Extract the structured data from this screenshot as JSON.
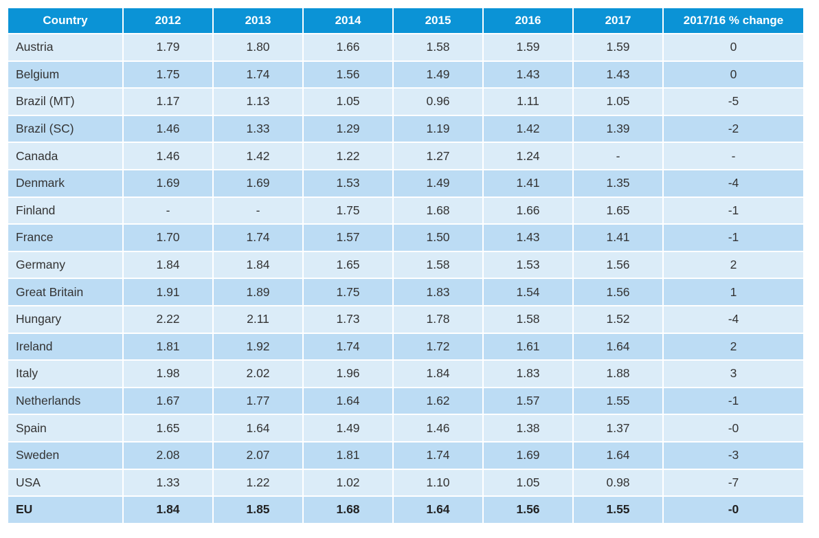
{
  "chart_data": {
    "type": "table",
    "columns": [
      "Country",
      "2012",
      "2013",
      "2014",
      "2015",
      "2016",
      "2017",
      "2017/16 % change"
    ],
    "rows": [
      {
        "country": "Austria",
        "values": [
          "1.79",
          "1.80",
          "1.66",
          "1.58",
          "1.59",
          "1.59",
          "0"
        ]
      },
      {
        "country": "Belgium",
        "values": [
          "1.75",
          "1.74",
          "1.56",
          "1.49",
          "1.43",
          "1.43",
          "0"
        ]
      },
      {
        "country": "Brazil (MT)",
        "values": [
          "1.17",
          "1.13",
          "1.05",
          "0.96",
          "1.11",
          "1.05",
          "-5"
        ]
      },
      {
        "country": "Brazil (SC)",
        "values": [
          "1.46",
          "1.33",
          "1.29",
          "1.19",
          "1.42",
          "1.39",
          "-2"
        ]
      },
      {
        "country": "Canada",
        "values": [
          "1.46",
          "1.42",
          "1.22",
          "1.27",
          "1.24",
          "-",
          "-"
        ]
      },
      {
        "country": "Denmark",
        "values": [
          "1.69",
          "1.69",
          "1.53",
          "1.49",
          "1.41",
          "1.35",
          "-4"
        ]
      },
      {
        "country": "Finland",
        "values": [
          "-",
          "-",
          "1.75",
          "1.68",
          "1.66",
          "1.65",
          "-1"
        ]
      },
      {
        "country": "France",
        "values": [
          "1.70",
          "1.74",
          "1.57",
          "1.50",
          "1.43",
          "1.41",
          "-1"
        ]
      },
      {
        "country": "Germany",
        "values": [
          "1.84",
          "1.84",
          "1.65",
          "1.58",
          "1.53",
          "1.56",
          "2"
        ]
      },
      {
        "country": "Great Britain",
        "values": [
          "1.91",
          "1.89",
          "1.75",
          "1.83",
          "1.54",
          "1.56",
          "1"
        ]
      },
      {
        "country": "Hungary",
        "values": [
          "2.22",
          "2.11",
          "1.73",
          "1.78",
          "1.58",
          "1.52",
          "-4"
        ]
      },
      {
        "country": "Ireland",
        "values": [
          "1.81",
          "1.92",
          "1.74",
          "1.72",
          "1.61",
          "1.64",
          "2"
        ]
      },
      {
        "country": "Italy",
        "values": [
          "1.98",
          "2.02",
          "1.96",
          "1.84",
          "1.83",
          "1.88",
          "3"
        ]
      },
      {
        "country": "Netherlands",
        "values": [
          "1.67",
          "1.77",
          "1.64",
          "1.62",
          "1.57",
          "1.55",
          "-1"
        ]
      },
      {
        "country": "Spain",
        "values": [
          "1.65",
          "1.64",
          "1.49",
          "1.46",
          "1.38",
          "1.37",
          "-0"
        ]
      },
      {
        "country": "Sweden",
        "values": [
          "2.08",
          "2.07",
          "1.81",
          "1.74",
          "1.69",
          "1.64",
          "-3"
        ]
      },
      {
        "country": "USA",
        "values": [
          "1.33",
          "1.22",
          "1.02",
          "1.10",
          "1.05",
          "0.98",
          "-7"
        ]
      },
      {
        "country": "EU",
        "values": [
          "1.84",
          "1.85",
          "1.68",
          "1.64",
          "1.56",
          "1.55",
          "-0"
        ],
        "bold": true
      }
    ],
    "colors": {
      "header_bg": "#0b93d6",
      "header_text": "#ffffff",
      "row_light": "#dbecf8",
      "row_dark": "#bcdcf4"
    }
  }
}
